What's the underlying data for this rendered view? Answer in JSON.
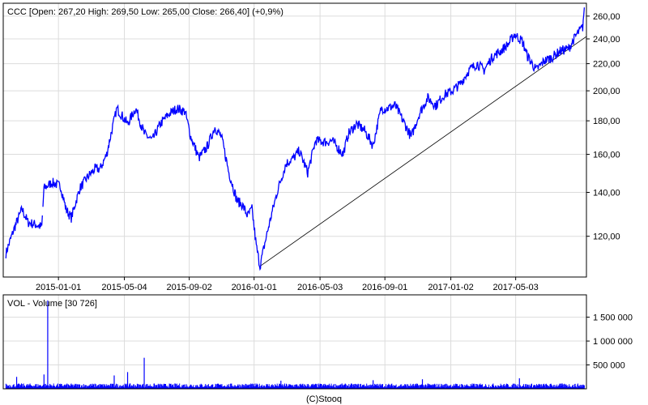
{
  "chart_data": [
    {
      "type": "line",
      "title": "CCC [Open: 267,20  High: 269,50  Low: 265,00  Close: 266,40]  (+0,9%)",
      "series_color": "#0000ff",
      "trendline_color": "#000000",
      "y_scale": "log",
      "ylim": [
        104,
        272
      ],
      "xlim": [
        "2014-09-20",
        "2017-09-12"
      ],
      "y_ticks": [
        {
          "value": 120,
          "label": "120,00"
        },
        {
          "value": 140,
          "label": "140,00"
        },
        {
          "value": 160,
          "label": "160,00"
        },
        {
          "value": 180,
          "label": "180,00"
        },
        {
          "value": 200,
          "label": "200,00"
        },
        {
          "value": 220,
          "label": "220,00"
        },
        {
          "value": 240,
          "label": "240,00"
        },
        {
          "value": 260,
          "label": "260,00"
        }
      ],
      "x_ticks": [
        {
          "date": "2015-01-01",
          "label": "2015-01-01"
        },
        {
          "date": "2015-05-04",
          "label": "2015-05-04"
        },
        {
          "date": "2015-09-02",
          "label": "2015-09-02"
        },
        {
          "date": "2016-01-01",
          "label": "2016-01-01"
        },
        {
          "date": "2016-05-03",
          "label": "2016-05-03"
        },
        {
          "date": "2016-09-01",
          "label": "2016-09-01"
        },
        {
          "date": "2017-01-02",
          "label": "2017-01-02"
        },
        {
          "date": "2017-05-03",
          "label": "2017-05-03"
        }
      ],
      "grid": true,
      "series": [
        {
          "x": [
            "2014-09-25",
            "2014-10-10",
            "2014-10-25",
            "2014-11-05",
            "2014-11-20",
            "2014-12-01",
            "2014-12-05",
            "2014-12-20",
            "2015-01-05",
            "2015-01-15",
            "2015-01-25",
            "2015-02-10",
            "2015-02-25",
            "2015-03-10",
            "2015-03-20",
            "2015-04-01",
            "2015-04-20",
            "2015-05-10",
            "2015-05-25",
            "2015-06-10",
            "2015-06-25",
            "2015-07-10",
            "2015-07-25",
            "2015-08-10",
            "2015-08-25",
            "2015-09-05",
            "2015-09-20",
            "2015-10-05",
            "2015-10-20",
            "2015-11-01",
            "2015-11-15",
            "2015-11-30",
            "2015-12-10",
            "2015-12-20",
            "2015-12-28",
            "2016-01-05",
            "2016-01-12",
            "2016-01-20",
            "2016-02-01",
            "2016-02-15",
            "2016-03-01",
            "2016-03-15",
            "2016-03-25",
            "2016-04-10",
            "2016-04-25",
            "2016-05-15",
            "2016-05-25",
            "2016-06-15",
            "2016-06-25",
            "2016-07-10",
            "2016-07-25",
            "2016-08-10",
            "2016-08-25",
            "2016-09-05",
            "2016-09-20",
            "2016-10-05",
            "2016-10-20",
            "2016-11-05",
            "2016-11-20",
            "2016-12-05",
            "2016-12-20",
            "2017-01-05",
            "2017-01-20",
            "2017-02-05",
            "2017-02-20",
            "2017-03-05",
            "2017-03-20",
            "2017-04-05",
            "2017-04-20",
            "2017-05-01",
            "2017-05-15",
            "2017-05-25",
            "2017-06-10",
            "2017-06-25",
            "2017-07-10",
            "2017-07-25",
            "2017-08-10",
            "2017-08-25",
            "2017-09-05",
            "2017-09-08"
          ],
          "values": [
            113,
            123,
            132,
            126,
            125,
            124,
            142,
            145,
            143,
            132,
            128,
            142,
            148,
            152,
            152,
            160,
            188,
            178,
            188,
            172,
            168,
            178,
            184,
            188,
            186,
            170,
            158,
            164,
            176,
            170,
            150,
            136,
            134,
            129,
            132,
            116,
            108,
            116,
            128,
            142,
            155,
            158,
            162,
            150,
            168,
            167,
            168,
            160,
            172,
            178,
            174,
            165,
            188,
            188,
            190,
            180,
            170,
            185,
            195,
            190,
            197,
            200,
            205,
            215,
            220,
            215,
            225,
            230,
            236,
            244,
            238,
            226,
            215,
            222,
            225,
            230,
            232,
            244,
            250,
            268
          ]
        }
      ],
      "trendline": {
        "from": {
          "date": "2016-01-12",
          "value": 108
        },
        "to": {
          "date": "2017-09-12",
          "value": 242
        }
      }
    },
    {
      "type": "bar",
      "title": "VOL - Volume [30 726]",
      "series_color": "#0000ff",
      "ylim": [
        0,
        1900000
      ],
      "y_ticks": [
        {
          "value": 500000,
          "label": "500 000"
        },
        {
          "value": 1000000,
          "label": "1 000 000"
        },
        {
          "value": 1500000,
          "label": "1 500 000"
        }
      ],
      "baseline": 80000,
      "spikes": [
        {
          "date": "2014-10-15",
          "value": 250000
        },
        {
          "date": "2014-12-05",
          "value": 300000
        },
        {
          "date": "2014-12-12",
          "value": 1850000
        },
        {
          "date": "2015-04-15",
          "value": 280000
        },
        {
          "date": "2015-05-10",
          "value": 350000
        },
        {
          "date": "2015-06-10",
          "value": 650000
        },
        {
          "date": "2016-02-20",
          "value": 170000
        },
        {
          "date": "2016-08-10",
          "value": 180000
        },
        {
          "date": "2016-11-10",
          "value": 200000
        },
        {
          "date": "2017-05-10",
          "value": 220000
        }
      ]
    }
  ],
  "footer": {
    "credit": "(C)Stooq"
  }
}
